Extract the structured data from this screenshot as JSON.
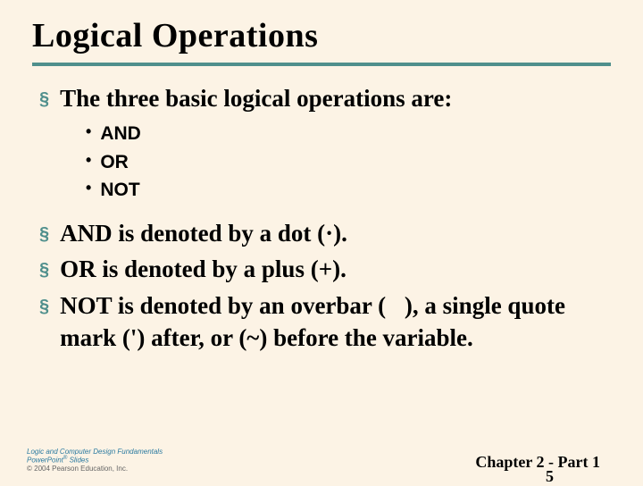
{
  "colors": {
    "background": "#fcf3e5",
    "text": "#000000",
    "rule": "#4f8f8c",
    "bullet_square": "#4f8f8c",
    "logo_text": "#2a7aa0"
  },
  "typography": {
    "title_fontsize": 38,
    "main_bullet_fontsize": 27,
    "sub_bullet_fontsize": 21,
    "footer_fontsize": 18,
    "title_font": "Times New Roman",
    "main_font": "Times New Roman",
    "sub_font": "Arial"
  },
  "title": "Logical Operations",
  "bullets": {
    "b0": "The three basic logical operations are:",
    "sub": {
      "s0": "AND",
      "s1": "OR",
      "s2": "NOT"
    },
    "b1": "AND is denoted by a dot (·).",
    "b2": "OR is denoted by a plus (+).",
    "b3_pre": "NOT is denoted by an overbar (",
    "b3_over": " ",
    "b3_post": " ), a single quote mark (') after, or (~) before the variable."
  },
  "markers": {
    "main": "§",
    "sub": "•"
  },
  "footer": {
    "logo_line1": "Logic and Computer Design Fundamentals",
    "logo_line2_a": "PowerPoint",
    "logo_line2_sup": "®",
    "logo_line2_b": " Slides",
    "logo_line3": "© 2004 Pearson Education, Inc.",
    "chapter": "Chapter 2 - Part 1",
    "page": "5"
  }
}
